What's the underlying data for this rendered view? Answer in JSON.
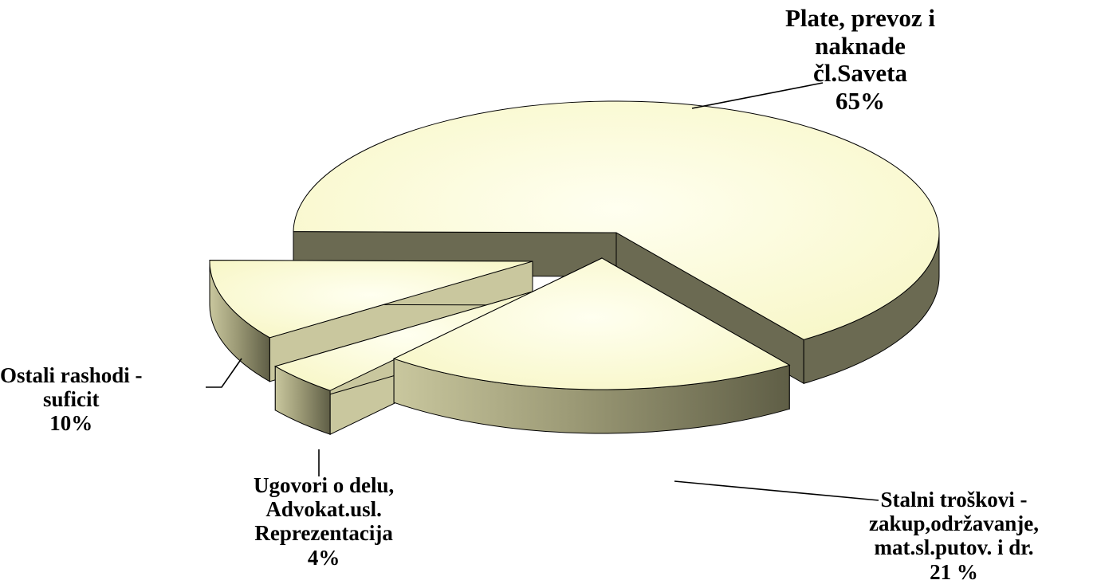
{
  "chart_data": {
    "type": "pie",
    "style": "3d-exploded",
    "slices": [
      {
        "name": "Plate, prevoz i naknade čl.Saveta",
        "value": 65,
        "label_lines": [
          "Plate, prevoz i",
          "naknade",
          "čl.Saveta",
          "65%"
        ]
      },
      {
        "name": "Stalni troškovi - zakup,održavanje, mat.sl.putov. i dr.",
        "value": 21,
        "label_lines": [
          "Stalni troškovi  -",
          "zakup,održavanje,",
          "mat.sl.putov.  i dr.",
          "21 %"
        ]
      },
      {
        "name": "Ugovori o delu, Advokat.usl. Reprezentacija",
        "value": 4,
        "label_lines": [
          "Ugovori o delu,",
          "Advokat.usl.",
          "Reprezentacija",
          "4%"
        ]
      },
      {
        "name": "Ostali rashodi - suficit",
        "value": 10,
        "label_lines": [
          "Ostali rashodi -",
          "suficit",
          "10%"
        ]
      }
    ],
    "colors": {
      "top": "#fdfdd2",
      "side_dark": "#6b6a52",
      "side_light": "#c9c79e",
      "edge": "#000000"
    },
    "legend": "none",
    "title": ""
  }
}
